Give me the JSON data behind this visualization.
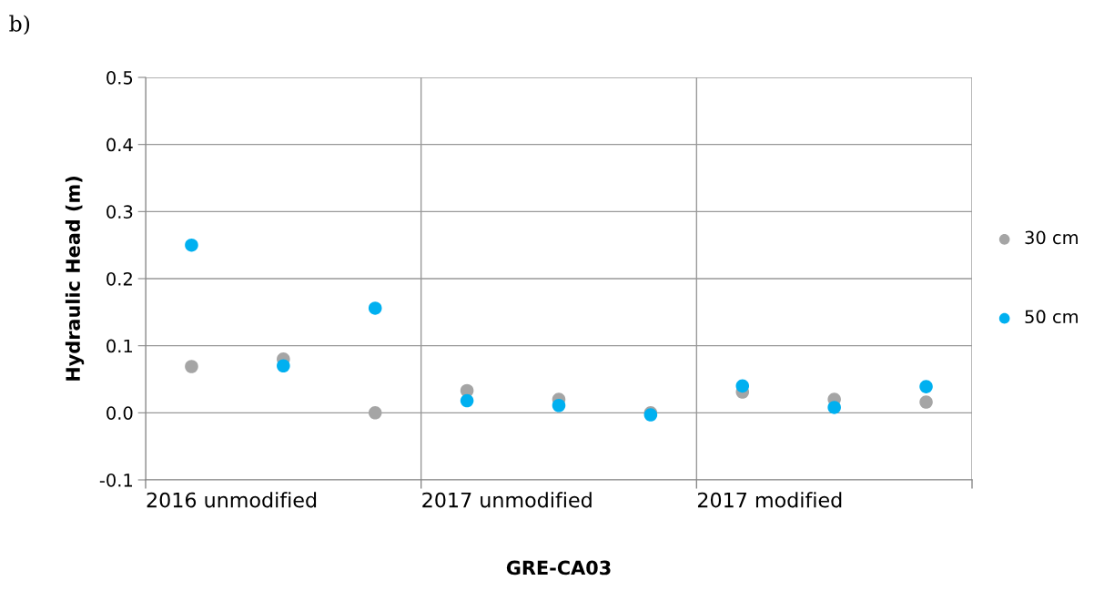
{
  "chart_data": {
    "type": "scatter",
    "xlabel": "GRE-CA03",
    "ylabel": "Hydraulic Head (m)",
    "categories": [
      null,
      null,
      null,
      null,
      null,
      null,
      null,
      null,
      null
    ],
    "series": [
      {
        "name": "30 cm",
        "color": "#a5a5a5",
        "values": [
          0.069,
          0.08,
          0.0,
          0.033,
          0.02,
          0.0,
          0.031,
          0.02,
          0.016
        ]
      },
      {
        "name": "50 cm",
        "color": "#00b0f0",
        "values": [
          0.25,
          0.07,
          0.156,
          0.018,
          0.011,
          -0.003,
          0.04,
          0.008,
          0.039
        ]
      }
    ],
    "ylim": [
      -0.1,
      0.5
    ],
    "yticks": [
      {
        "value": -0.1,
        "label": "-0.1"
      },
      {
        "value": 0,
        "label": "0.0"
      },
      {
        "value": 0.1,
        "label": "0.1"
      },
      {
        "value": 0.2,
        "label": "0.2"
      },
      {
        "value": 0.3,
        "label": "0.3"
      },
      {
        "value": 0.4,
        "label": "0.4"
      },
      {
        "value": 0.5,
        "label": "0.5"
      }
    ],
    "grid": true,
    "legend": "right",
    "marker": "circle",
    "annotations": [
      "b)",
      "2016 unmodified",
      "2017 unmodified",
      "2017 modified"
    ]
  }
}
